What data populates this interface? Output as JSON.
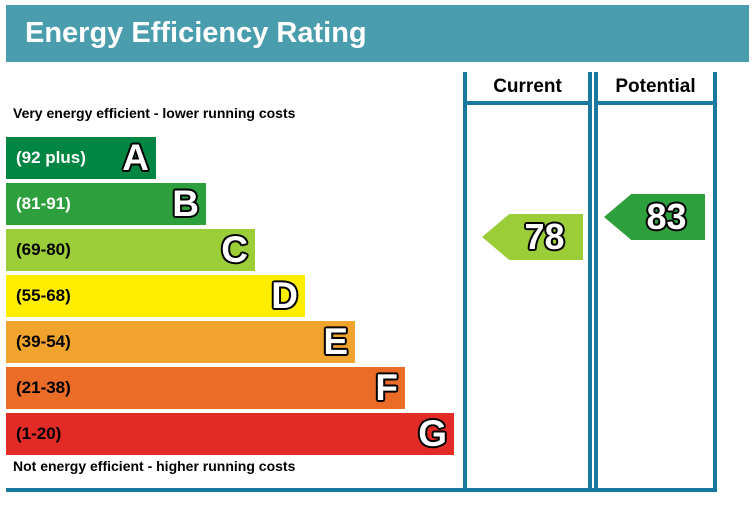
{
  "colors": {
    "header_band": "#4a9dac",
    "table_border": "#19789f",
    "title_text": "#ffffff"
  },
  "chart_data": {
    "type": "rating-scale",
    "title": "Energy Efficiency Rating",
    "top_caption": "Very energy efficient - lower running costs",
    "bottom_caption": "Not energy efficient - higher running costs",
    "columns": {
      "current": "Current",
      "potential": "Potential"
    },
    "bands": [
      {
        "letter": "A",
        "range_label": "(92 plus)",
        "min": 92,
        "max": 100,
        "color": "#008542",
        "text_color": "#ffffff"
      },
      {
        "letter": "B",
        "range_label": "(81-91)",
        "min": 81,
        "max": 91,
        "color": "#2d9f3c",
        "text_color": "#ffffff"
      },
      {
        "letter": "C",
        "range_label": "(69-80)",
        "min": 69,
        "max": 80,
        "color": "#9bcd39",
        "text_color": "#000000"
      },
      {
        "letter": "D",
        "range_label": "(55-68)",
        "min": 55,
        "max": 68,
        "color": "#ffed00",
        "text_color": "#000000"
      },
      {
        "letter": "E",
        "range_label": "(39-54)",
        "min": 39,
        "max": 54,
        "color": "#f1a42d",
        "text_color": "#000000"
      },
      {
        "letter": "F",
        "range_label": "(21-38)",
        "min": 21,
        "max": 38,
        "color": "#ea6c27",
        "text_color": "#000000"
      },
      {
        "letter": "G",
        "range_label": "(1-20)",
        "min": 1,
        "max": 20,
        "color": "#e22b26",
        "text_color": "#000000"
      }
    ],
    "current": {
      "value": 78,
      "band": "C"
    },
    "potential": {
      "value": 83,
      "band": "B"
    }
  }
}
